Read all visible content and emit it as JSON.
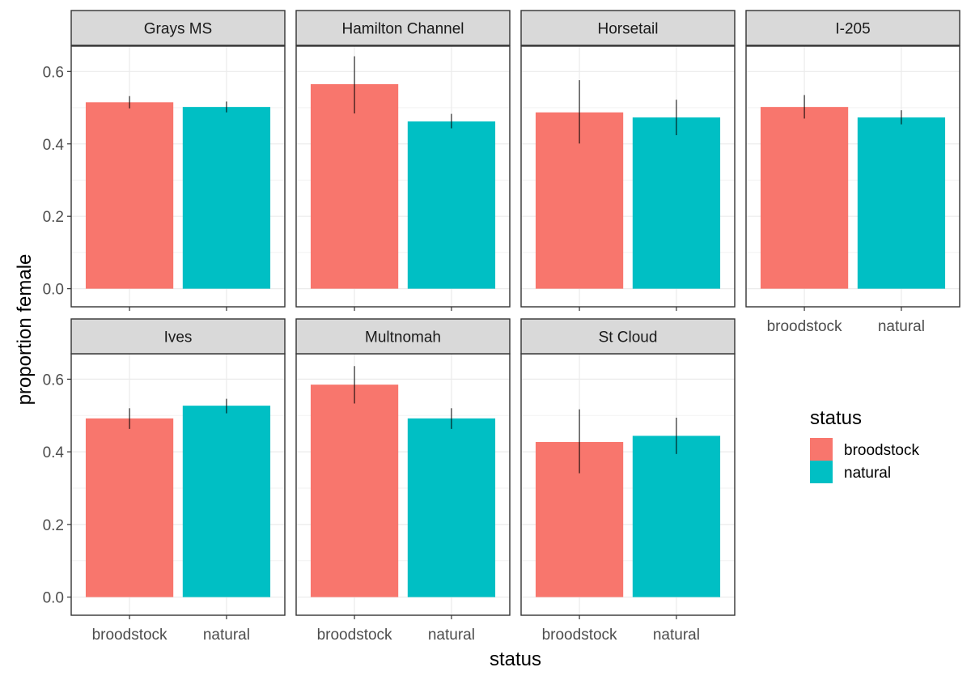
{
  "chart_data": {
    "type": "bar",
    "xlabel": "status",
    "ylabel": "proportion female",
    "ylim": [
      -0.05,
      0.67
    ],
    "yticks": [
      0.0,
      0.2,
      0.4,
      0.6
    ],
    "ytick_labels": [
      "0.0",
      "0.2",
      "0.4",
      "0.6"
    ],
    "categories": [
      "broodstock",
      "natural"
    ],
    "colors": {
      "broodstock": "#F8766D",
      "natural": "#00BFC4"
    },
    "grid": true,
    "legend": {
      "title": "status",
      "position": "right",
      "entries": [
        "broodstock",
        "natural"
      ]
    },
    "panels": [
      {
        "title": "Grays MS",
        "values": [
          0.515,
          0.502
        ],
        "error_low": [
          0.498,
          0.487
        ],
        "error_high": [
          0.532,
          0.517
        ]
      },
      {
        "title": "Hamilton Channel",
        "values": [
          0.565,
          0.462
        ],
        "error_low": [
          0.484,
          0.443
        ],
        "error_high": [
          0.642,
          0.483
        ]
      },
      {
        "title": "Horsetail",
        "values": [
          0.487,
          0.473
        ],
        "error_low": [
          0.401,
          0.424
        ],
        "error_high": [
          0.576,
          0.522
        ]
      },
      {
        "title": "I-205",
        "values": [
          0.502,
          0.473
        ],
        "error_low": [
          0.47,
          0.454
        ],
        "error_high": [
          0.535,
          0.493
        ]
      },
      {
        "title": "Ives",
        "values": [
          0.492,
          0.527
        ],
        "error_low": [
          0.463,
          0.506
        ],
        "error_high": [
          0.52,
          0.546
        ]
      },
      {
        "title": "Multnomah",
        "values": [
          0.585,
          0.492
        ],
        "error_low": [
          0.533,
          0.463
        ],
        "error_high": [
          0.636,
          0.52
        ]
      },
      {
        "title": "St Cloud",
        "values": [
          0.427,
          0.444
        ],
        "error_low": [
          0.341,
          0.394
        ],
        "error_high": [
          0.517,
          0.494
        ]
      }
    ]
  }
}
